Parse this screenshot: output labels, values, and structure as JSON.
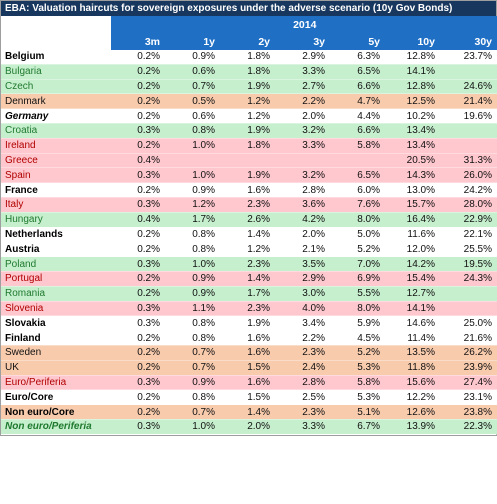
{
  "title": "EBA: Valuation haircuts for sovereign exposures under the adverse scenario (10y Gov Bonds)",
  "year": "2014",
  "maturities": [
    "3m",
    "1y",
    "2y",
    "3y",
    "5y",
    "10y",
    "30y"
  ],
  "rows": [
    {
      "name": "Belgium",
      "style": "bold",
      "bg": "white",
      "values": [
        "0.2%",
        "0.9%",
        "1.8%",
        "2.9%",
        "6.3%",
        "12.8%",
        "23.7%"
      ]
    },
    {
      "name": "Bulgaria",
      "style": "green",
      "bg": "green",
      "values": [
        "0.2%",
        "0.6%",
        "1.8%",
        "3.3%",
        "6.5%",
        "14.1%",
        ""
      ]
    },
    {
      "name": "Czech",
      "style": "green",
      "bg": "green",
      "values": [
        "0.2%",
        "0.7%",
        "1.9%",
        "2.7%",
        "6.6%",
        "12.8%",
        "24.6%"
      ]
    },
    {
      "name": "Denmark",
      "style": "plain",
      "bg": "orange",
      "values": [
        "0.2%",
        "0.5%",
        "1.2%",
        "2.2%",
        "4.7%",
        "12.5%",
        "21.4%"
      ]
    },
    {
      "name": "Germany",
      "style": "bold-italic",
      "bg": "white",
      "values": [
        "0.2%",
        "0.6%",
        "1.2%",
        "2.0%",
        "4.4%",
        "10.2%",
        "19.6%"
      ]
    },
    {
      "name": "Croatia",
      "style": "green",
      "bg": "green",
      "values": [
        "0.3%",
        "0.8%",
        "1.9%",
        "3.2%",
        "6.6%",
        "13.4%",
        ""
      ]
    },
    {
      "name": "Ireland",
      "style": "red",
      "bg": "pink",
      "values": [
        "0.2%",
        "1.0%",
        "1.8%",
        "3.3%",
        "5.8%",
        "13.4%",
        ""
      ]
    },
    {
      "name": "Greece",
      "style": "red",
      "bg": "pink",
      "values": [
        "0.4%",
        "",
        "",
        "",
        "",
        "20.5%",
        "31.3%"
      ]
    },
    {
      "name": "Spain",
      "style": "red",
      "bg": "pink",
      "values": [
        "0.3%",
        "1.0%",
        "1.9%",
        "3.2%",
        "6.5%",
        "14.3%",
        "26.0%"
      ]
    },
    {
      "name": "France",
      "style": "bold",
      "bg": "white",
      "values": [
        "0.2%",
        "0.9%",
        "1.6%",
        "2.8%",
        "6.0%",
        "13.0%",
        "24.2%"
      ]
    },
    {
      "name": "Italy",
      "style": "red",
      "bg": "pink",
      "values": [
        "0.3%",
        "1.2%",
        "2.3%",
        "3.6%",
        "7.6%",
        "15.7%",
        "28.0%"
      ]
    },
    {
      "name": "Hungary",
      "style": "green",
      "bg": "green",
      "values": [
        "0.4%",
        "1.7%",
        "2.6%",
        "4.2%",
        "8.0%",
        "16.4%",
        "22.9%"
      ]
    },
    {
      "name": "Netherlands",
      "style": "bold",
      "bg": "white",
      "values": [
        "0.2%",
        "0.8%",
        "1.4%",
        "2.0%",
        "5.0%",
        "11.6%",
        "22.1%"
      ]
    },
    {
      "name": "Austria",
      "style": "bold",
      "bg": "white",
      "values": [
        "0.2%",
        "0.8%",
        "1.2%",
        "2.1%",
        "5.2%",
        "12.0%",
        "25.5%"
      ]
    },
    {
      "name": "Poland",
      "style": "green",
      "bg": "green",
      "values": [
        "0.3%",
        "1.0%",
        "2.3%",
        "3.5%",
        "7.0%",
        "14.2%",
        "19.5%"
      ]
    },
    {
      "name": "Portugal",
      "style": "red",
      "bg": "pink",
      "values": [
        "0.2%",
        "0.9%",
        "1.4%",
        "2.9%",
        "6.9%",
        "15.4%",
        "24.3%"
      ]
    },
    {
      "name": "Romania",
      "style": "green",
      "bg": "green",
      "values": [
        "0.2%",
        "0.9%",
        "1.7%",
        "3.0%",
        "5.5%",
        "12.7%",
        ""
      ]
    },
    {
      "name": "Slovenia",
      "style": "red",
      "bg": "pink",
      "values": [
        "0.3%",
        "1.1%",
        "2.3%",
        "4.0%",
        "8.0%",
        "14.1%",
        ""
      ]
    },
    {
      "name": "Slovakia",
      "style": "bold",
      "bg": "white",
      "values": [
        "0.3%",
        "0.8%",
        "1.9%",
        "3.4%",
        "5.9%",
        "14.6%",
        "25.0%"
      ]
    },
    {
      "name": "Finland",
      "style": "bold",
      "bg": "white",
      "values": [
        "0.2%",
        "0.8%",
        "1.6%",
        "2.2%",
        "4.5%",
        "11.4%",
        "21.6%"
      ]
    },
    {
      "name": "Sweden",
      "style": "plain",
      "bg": "orange",
      "values": [
        "0.2%",
        "0.7%",
        "1.6%",
        "2.3%",
        "5.2%",
        "13.5%",
        "26.2%"
      ]
    },
    {
      "name": "UK",
      "style": "plain",
      "bg": "orange",
      "values": [
        "0.2%",
        "0.7%",
        "1.5%",
        "2.4%",
        "5.3%",
        "11.8%",
        "23.9%"
      ]
    },
    {
      "name": "Euro/Periferia",
      "style": "red",
      "bg": "pink",
      "sep": true,
      "values": [
        "0.3%",
        "0.9%",
        "1.6%",
        "2.8%",
        "5.8%",
        "15.6%",
        "27.4%"
      ]
    },
    {
      "name": "Euro/Core",
      "style": "bold",
      "bg": "white",
      "values": [
        "0.2%",
        "0.8%",
        "1.5%",
        "2.5%",
        "5.3%",
        "12.2%",
        "23.1%"
      ]
    },
    {
      "name": "Non euro/Core",
      "style": "bold",
      "bg": "orange",
      "values": [
        "0.2%",
        "0.7%",
        "1.4%",
        "2.3%",
        "5.1%",
        "12.6%",
        "23.8%"
      ]
    },
    {
      "name": "Non euro/Periferia",
      "style": "bold-italic",
      "bg": "green",
      "values": [
        "0.3%",
        "1.0%",
        "2.0%",
        "3.3%",
        "6.7%",
        "13.9%",
        "22.3%"
      ]
    }
  ]
}
